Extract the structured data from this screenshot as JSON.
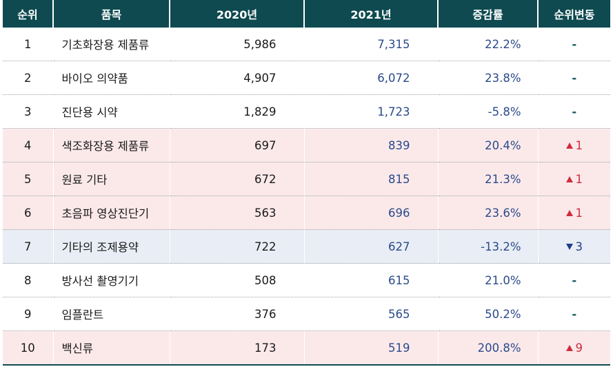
{
  "headers": [
    "순위",
    "품목",
    "2020년",
    "2021년",
    "증감률",
    "순위변동"
  ],
  "rows": [
    {
      "rank": "1",
      "item": "기초화장용 제품류",
      "y2020": "5,986",
      "y2021": "7,315",
      "change": "22.2%",
      "rank_change": {
        "dir": "none",
        "text": "-"
      }
    },
    {
      "rank": "2",
      "item": "바이오 의약품",
      "y2020": "4,907",
      "y2021": "6,072",
      "change": "23.8%",
      "rank_change": {
        "dir": "none",
        "text": "-"
      }
    },
    {
      "rank": "3",
      "item": "진단용 시약",
      "y2020": "1,829",
      "y2021": "1,723",
      "change": "-5.8%",
      "rank_change": {
        "dir": "none",
        "text": "-"
      }
    },
    {
      "rank": "4",
      "item": "색조화장용 제품류",
      "y2020": "697",
      "y2021": "839",
      "change": "20.4%",
      "rank_change": {
        "dir": "up",
        "text": "1"
      }
    },
    {
      "rank": "5",
      "item": "원료 기타",
      "y2020": "672",
      "y2021": "815",
      "change": "21.3%",
      "rank_change": {
        "dir": "up",
        "text": "1"
      }
    },
    {
      "rank": "6",
      "item": "초음파 영상진단기",
      "y2020": "563",
      "y2021": "696",
      "change": "23.6%",
      "rank_change": {
        "dir": "up",
        "text": "1"
      }
    },
    {
      "rank": "7",
      "item": "기타의 조제용약",
      "y2020": "722",
      "y2021": "627",
      "change": "-13.2%",
      "rank_change": {
        "dir": "down",
        "text": "3"
      }
    },
    {
      "rank": "8",
      "item": "방사선 촬영기기",
      "y2020": "508",
      "y2021": "615",
      "change": "21.0%",
      "rank_change": {
        "dir": "none",
        "text": "-"
      }
    },
    {
      "rank": "9",
      "item": "임플란트",
      "y2020": "376",
      "y2021": "565",
      "change": "50.2%",
      "rank_change": {
        "dir": "none",
        "text": "-"
      }
    },
    {
      "rank": "10",
      "item": "백신류",
      "y2020": "173",
      "y2021": "519",
      "change": "200.8%",
      "rank_change": {
        "dir": "up",
        "text": "9"
      }
    }
  ],
  "colors": {
    "header_bg": "#0e4a50",
    "up": "#cf2d3c",
    "down": "#1e3f8a",
    "up_row_bg": "#fbe9ea",
    "down_row_bg": "#e9edf5"
  }
}
